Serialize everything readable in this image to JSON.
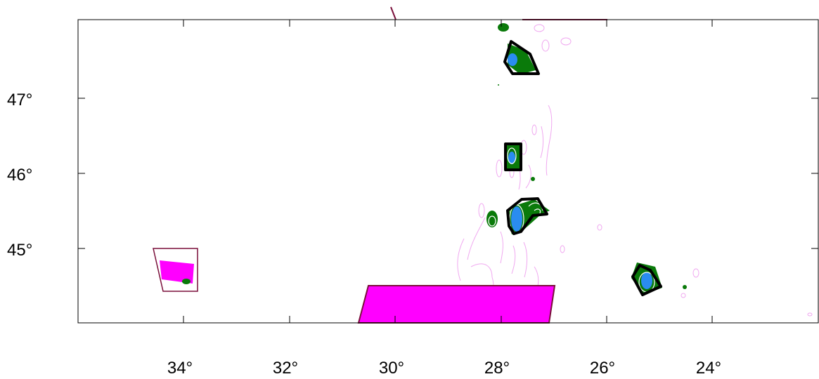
{
  "axes": {
    "lat_labels": [
      "47°",
      "46°",
      "45°"
    ],
    "lon_labels": [
      "34°",
      "32°",
      "30°",
      "28°",
      "26°",
      "24°"
    ]
  },
  "colors": {
    "frame": "#000000",
    "outline": "#7a0f3a",
    "magenta_fill": "#ff00ff",
    "green": "#0a7a0a",
    "blue": "#2a8cf0",
    "pink_contour": "#f0a8f0",
    "thick_outline": "#000000"
  }
}
